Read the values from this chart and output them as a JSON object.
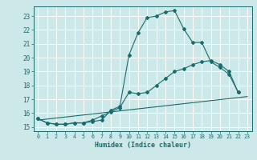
{
  "title": "",
  "xlabel": "Humidex (Indice chaleur)",
  "bg_color": "#cde8e8",
  "grid_color": "#ffffff",
  "line_color": "#1a6b6b",
  "xlim": [
    -0.5,
    23.5
  ],
  "ylim": [
    14.7,
    23.7
  ],
  "yticks": [
    15,
    16,
    17,
    18,
    19,
    20,
    21,
    22,
    23
  ],
  "xticks": [
    0,
    1,
    2,
    3,
    4,
    5,
    6,
    7,
    8,
    9,
    10,
    11,
    12,
    13,
    14,
    15,
    16,
    17,
    18,
    19,
    20,
    21,
    22,
    23
  ],
  "line1_x": [
    0,
    1,
    2,
    3,
    4,
    5,
    6,
    7,
    8,
    9,
    10,
    11,
    12,
    13,
    14,
    15,
    16,
    17,
    18,
    19,
    20,
    21,
    22
  ],
  "line1_y": [
    15.6,
    15.3,
    15.2,
    15.2,
    15.3,
    15.3,
    15.4,
    15.5,
    16.2,
    16.5,
    20.2,
    21.8,
    22.9,
    23.0,
    23.3,
    23.4,
    22.1,
    21.1,
    21.1,
    19.7,
    19.3,
    18.8,
    17.5
  ],
  "line2_x": [
    0,
    1,
    2,
    3,
    4,
    5,
    6,
    7,
    8,
    9,
    10,
    11,
    12,
    13,
    14,
    15,
    16,
    17,
    18,
    19,
    20,
    21,
    22
  ],
  "line2_y": [
    15.6,
    15.3,
    15.2,
    15.2,
    15.3,
    15.3,
    15.5,
    15.8,
    16.1,
    16.4,
    17.5,
    17.4,
    17.5,
    18.0,
    18.5,
    19.0,
    19.2,
    19.5,
    19.7,
    19.8,
    19.5,
    19.0,
    17.5
  ],
  "line3_x": [
    0,
    23
  ],
  "line3_y": [
    15.5,
    17.2
  ]
}
